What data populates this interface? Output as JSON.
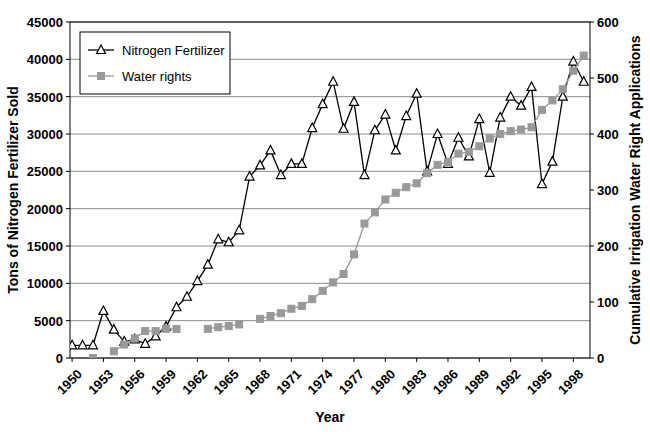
{
  "chart_data": {
    "type": "line",
    "x_label": "Year",
    "y_label": "Tons of Nitrogen Fertilizer Sold",
    "y2_label": "Cumulative Irrigation Water Right Applications",
    "x": [
      1950,
      1951,
      1952,
      1953,
      1954,
      1955,
      1956,
      1957,
      1958,
      1959,
      1960,
      1961,
      1962,
      1963,
      1964,
      1965,
      1966,
      1967,
      1968,
      1969,
      1970,
      1971,
      1972,
      1973,
      1974,
      1975,
      1976,
      1977,
      1978,
      1979,
      1980,
      1981,
      1982,
      1983,
      1984,
      1985,
      1986,
      1987,
      1988,
      1989,
      1990,
      1991,
      1992,
      1993,
      1994,
      1995,
      1996,
      1997,
      1998,
      1999
    ],
    "xlim": [
      1949.8,
      1999.6
    ],
    "xticks": [
      1950,
      1953,
      1956,
      1959,
      1962,
      1965,
      1968,
      1971,
      1974,
      1977,
      1980,
      1983,
      1986,
      1989,
      1992,
      1995,
      1998
    ],
    "ylim": [
      0,
      45000
    ],
    "yticks": [
      0,
      5000,
      10000,
      15000,
      20000,
      25000,
      30000,
      35000,
      40000,
      45000
    ],
    "y2lim": [
      0,
      600
    ],
    "y2ticks": [
      0,
      100,
      200,
      300,
      400,
      500,
      600
    ],
    "grid": true,
    "legend": "top-left",
    "series": [
      {
        "name": "Nitrogen Fertilizer",
        "color": "#000000",
        "marker": "triangle",
        "line_style": "solid",
        "values": [
          1700,
          1700,
          1700,
          6300,
          3800,
          2200,
          2500,
          1900,
          2900,
          4200,
          6800,
          8200,
          10300,
          12500,
          15900,
          15500,
          17100,
          24300,
          25800,
          27800,
          24500,
          26000,
          26000,
          30800,
          34000,
          37000,
          30700,
          34300,
          24500,
          30500,
          32600,
          27800,
          32400,
          35400,
          25000,
          30000,
          26000,
          29500,
          27000,
          32000,
          24800,
          32200,
          35000,
          33800,
          36300,
          23300,
          26300,
          35000,
          39700,
          37000
        ]
      },
      {
        "name": "Water rights",
        "color": "#999999",
        "marker": "square",
        "line_style": "solid",
        "axis": "y2",
        "values": [
          null,
          null,
          0,
          null,
          12,
          24,
          35,
          48,
          48,
          52,
          52,
          null,
          null,
          52,
          55,
          57,
          60,
          null,
          70,
          75,
          80,
          88,
          93,
          105,
          120,
          135,
          150,
          185,
          240,
          260,
          283,
          295,
          305,
          312,
          330,
          345,
          350,
          365,
          368,
          378,
          392,
          400,
          405,
          408,
          412,
          443,
          460,
          480,
          513,
          540
        ]
      }
    ]
  }
}
